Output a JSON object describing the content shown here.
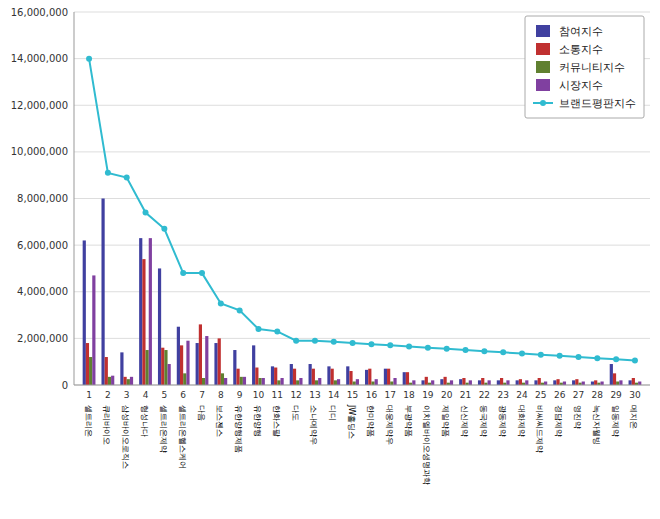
{
  "chart_data": {
    "type": "bar",
    "categories": [
      "1",
      "2",
      "3",
      "4",
      "5",
      "6",
      "7",
      "8",
      "9",
      "10",
      "11",
      "12",
      "13",
      "14",
      "15",
      "16",
      "17",
      "18",
      "19",
      "20",
      "21",
      "22",
      "23",
      "24",
      "25",
      "26",
      "27",
      "28",
      "29",
      "30"
    ],
    "annotations": [
      "셀트리온",
      "큐리바이오",
      "삼성바이오로직스",
      "형성나다",
      "셀트리온제약",
      "셀트리온헬스케어",
      "다음",
      "보스젠스",
      "유한양행제품",
      "유한양행",
      "한화스팔",
      "다도",
      "소나메약우",
      "디디",
      "JW홀딩스",
      "한미약품",
      "대웅제약우",
      "부광약품",
      "이치엘바이오생명과학",
      "제일약품",
      "신신제약",
      "동국제약",
      "광동제약",
      "대화제약",
      "비씨씨드제약",
      "경담제약",
      "영진약",
      "녹신자웰빙",
      "일동제약",
      "메지온"
    ],
    "series": [
      {
        "name": "참여지수",
        "color": "#4040a0",
        "type": "bar",
        "values": [
          6200000,
          8000000,
          1400000,
          6300000,
          5000000,
          2500000,
          1800000,
          1800000,
          1500000,
          1700000,
          800000,
          900000,
          900000,
          800000,
          800000,
          650000,
          700000,
          550000,
          200000,
          250000,
          250000,
          200000,
          200000,
          200000,
          200000,
          200000,
          200000,
          150000,
          900000,
          200000
        ]
      },
      {
        "name": "소통지수",
        "color": "#c03030",
        "type": "bar",
        "values": [
          1800000,
          1200000,
          350000,
          5400000,
          1600000,
          1700000,
          2600000,
          2000000,
          700000,
          750000,
          750000,
          700000,
          700000,
          700000,
          600000,
          700000,
          700000,
          550000,
          350000,
          350000,
          300000,
          300000,
          300000,
          250000,
          300000,
          250000,
          250000,
          200000,
          500000,
          300000
        ]
      },
      {
        "name": "커뮤니티지수",
        "color": "#608030",
        "type": "bar",
        "values": [
          1200000,
          350000,
          250000,
          1500000,
          1500000,
          500000,
          300000,
          500000,
          350000,
          300000,
          200000,
          200000,
          200000,
          200000,
          150000,
          150000,
          150000,
          100000,
          100000,
          100000,
          100000,
          100000,
          100000,
          100000,
          100000,
          100000,
          100000,
          100000,
          150000,
          100000
        ]
      },
      {
        "name": "시장지수",
        "color": "#8040a0",
        "type": "bar",
        "values": [
          4700000,
          400000,
          350000,
          6300000,
          900000,
          1900000,
          2100000,
          300000,
          350000,
          300000,
          300000,
          300000,
          300000,
          250000,
          250000,
          250000,
          300000,
          200000,
          200000,
          200000,
          200000,
          200000,
          200000,
          200000,
          150000,
          150000,
          150000,
          150000,
          200000,
          150000
        ]
      },
      {
        "name": "브랜드평판지수",
        "color": "#30bbd0",
        "type": "line",
        "marker": "circle",
        "line_style": "solid",
        "values": [
          14000000,
          9100000,
          8900000,
          7400000,
          6700000,
          4800000,
          4800000,
          3500000,
          3200000,
          2400000,
          2300000,
          1900000,
          1900000,
          1850000,
          1800000,
          1750000,
          1700000,
          1650000,
          1600000,
          1550000,
          1500000,
          1450000,
          1400000,
          1350000,
          1300000,
          1250000,
          1200000,
          1150000,
          1100000,
          1050000
        ]
      }
    ],
    "ylim": [
      0,
      16000000
    ],
    "yticks": [
      0,
      {
        "value": 2000000,
        "label": "2,000,000"
      },
      {
        "value": 4000000,
        "label": "4,000,000"
      },
      {
        "value": 6000000,
        "label": "6,000,000"
      },
      {
        "value": 8000000,
        "label": "8,000,000"
      },
      {
        "value": 10000000,
        "label": "10,000,000"
      },
      {
        "value": 12000000,
        "label": "12,000,000"
      },
      {
        "value": 14000000,
        "label": "14,000,000"
      },
      {
        "value": 16000000,
        "label": "16,000,000"
      }
    ],
    "grid": true,
    "legend": "upper right"
  }
}
